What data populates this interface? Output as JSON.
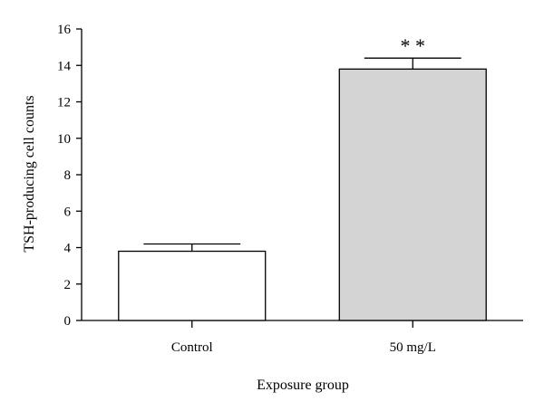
{
  "chart_data": {
    "type": "bar",
    "title": "",
    "xlabel": "Exposure group",
    "ylabel": "TSH-producing cell counts",
    "categories": [
      "Control",
      "50 mg/L"
    ],
    "values": [
      3.8,
      13.8
    ],
    "errors": [
      0.4,
      0.6
    ],
    "annotations": [
      "",
      "* *"
    ],
    "bar_colors": [
      "#ffffff",
      "#d4d4d4"
    ],
    "ylim": [
      0,
      16
    ],
    "yticks": [
      0,
      2,
      4,
      6,
      8,
      10,
      12,
      14,
      16
    ],
    "grid": false
  }
}
